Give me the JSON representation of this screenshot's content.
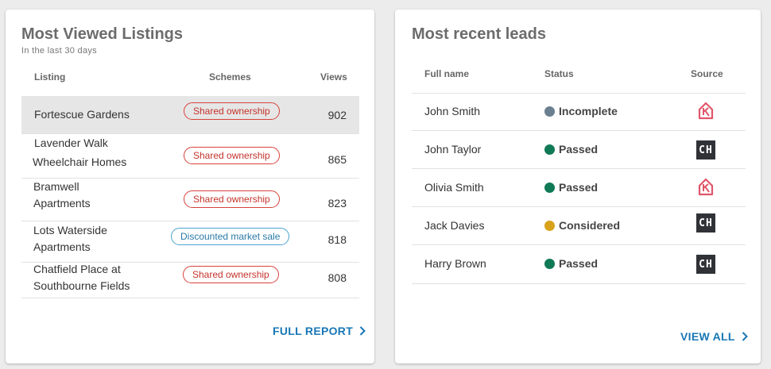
{
  "listings_card": {
    "title": "Most Viewed Listings",
    "subtitle": "In the last 30 days",
    "headers": {
      "listing": "Listing",
      "schemes": "Schemes",
      "views": "Views"
    },
    "rows": [
      {
        "line1": "Fortescue Gardens",
        "line2": "",
        "scheme": "Shared ownership",
        "scheme_type": "red",
        "views": "902"
      },
      {
        "line1": "Lavender Walk",
        "line2": "Wheelchair Homes",
        "scheme": "Shared ownership",
        "scheme_type": "red",
        "views": "865"
      },
      {
        "line1": "Bramwell",
        "line2": "Apartments",
        "scheme": "Shared ownership",
        "scheme_type": "red",
        "views": "823"
      },
      {
        "line1": "Lots Waterside",
        "line2": "Apartments",
        "scheme": "Discounted market sale",
        "scheme_type": "blue",
        "views": "818"
      },
      {
        "line1": "Chatfield Place at",
        "line2": "Southbourne Fields",
        "scheme": "Shared ownership",
        "scheme_type": "red",
        "views": "808"
      }
    ],
    "link_label": "FULL REPORT"
  },
  "leads_card": {
    "title": "Most recent leads",
    "headers": {
      "name": "Full name",
      "status": "Status",
      "source": "Source"
    },
    "rows": [
      {
        "name": "John Smith",
        "status": "Incomplete",
        "status_color": "#6b7f8f",
        "source": "house-icon"
      },
      {
        "name": "John Taylor",
        "status": "Passed",
        "status_color": "#0f7a55",
        "source": "CH"
      },
      {
        "name": "Olivia Smith",
        "status": "Passed",
        "status_color": "#0f7a55",
        "source": "house-icon"
      },
      {
        "name": "Jack Davies",
        "status": "Considered",
        "status_color": "#d9a21b",
        "source": "CH"
      },
      {
        "name": "Harry Brown",
        "status": "Passed",
        "status_color": "#0f7a55",
        "source": "CH"
      }
    ],
    "link_label": "VIEW ALL"
  },
  "colors": {
    "accent": "#1877b5",
    "pill_red": "#d6433b",
    "pill_blue": "#4aa3cf",
    "house_icon": "#e0566a"
  }
}
